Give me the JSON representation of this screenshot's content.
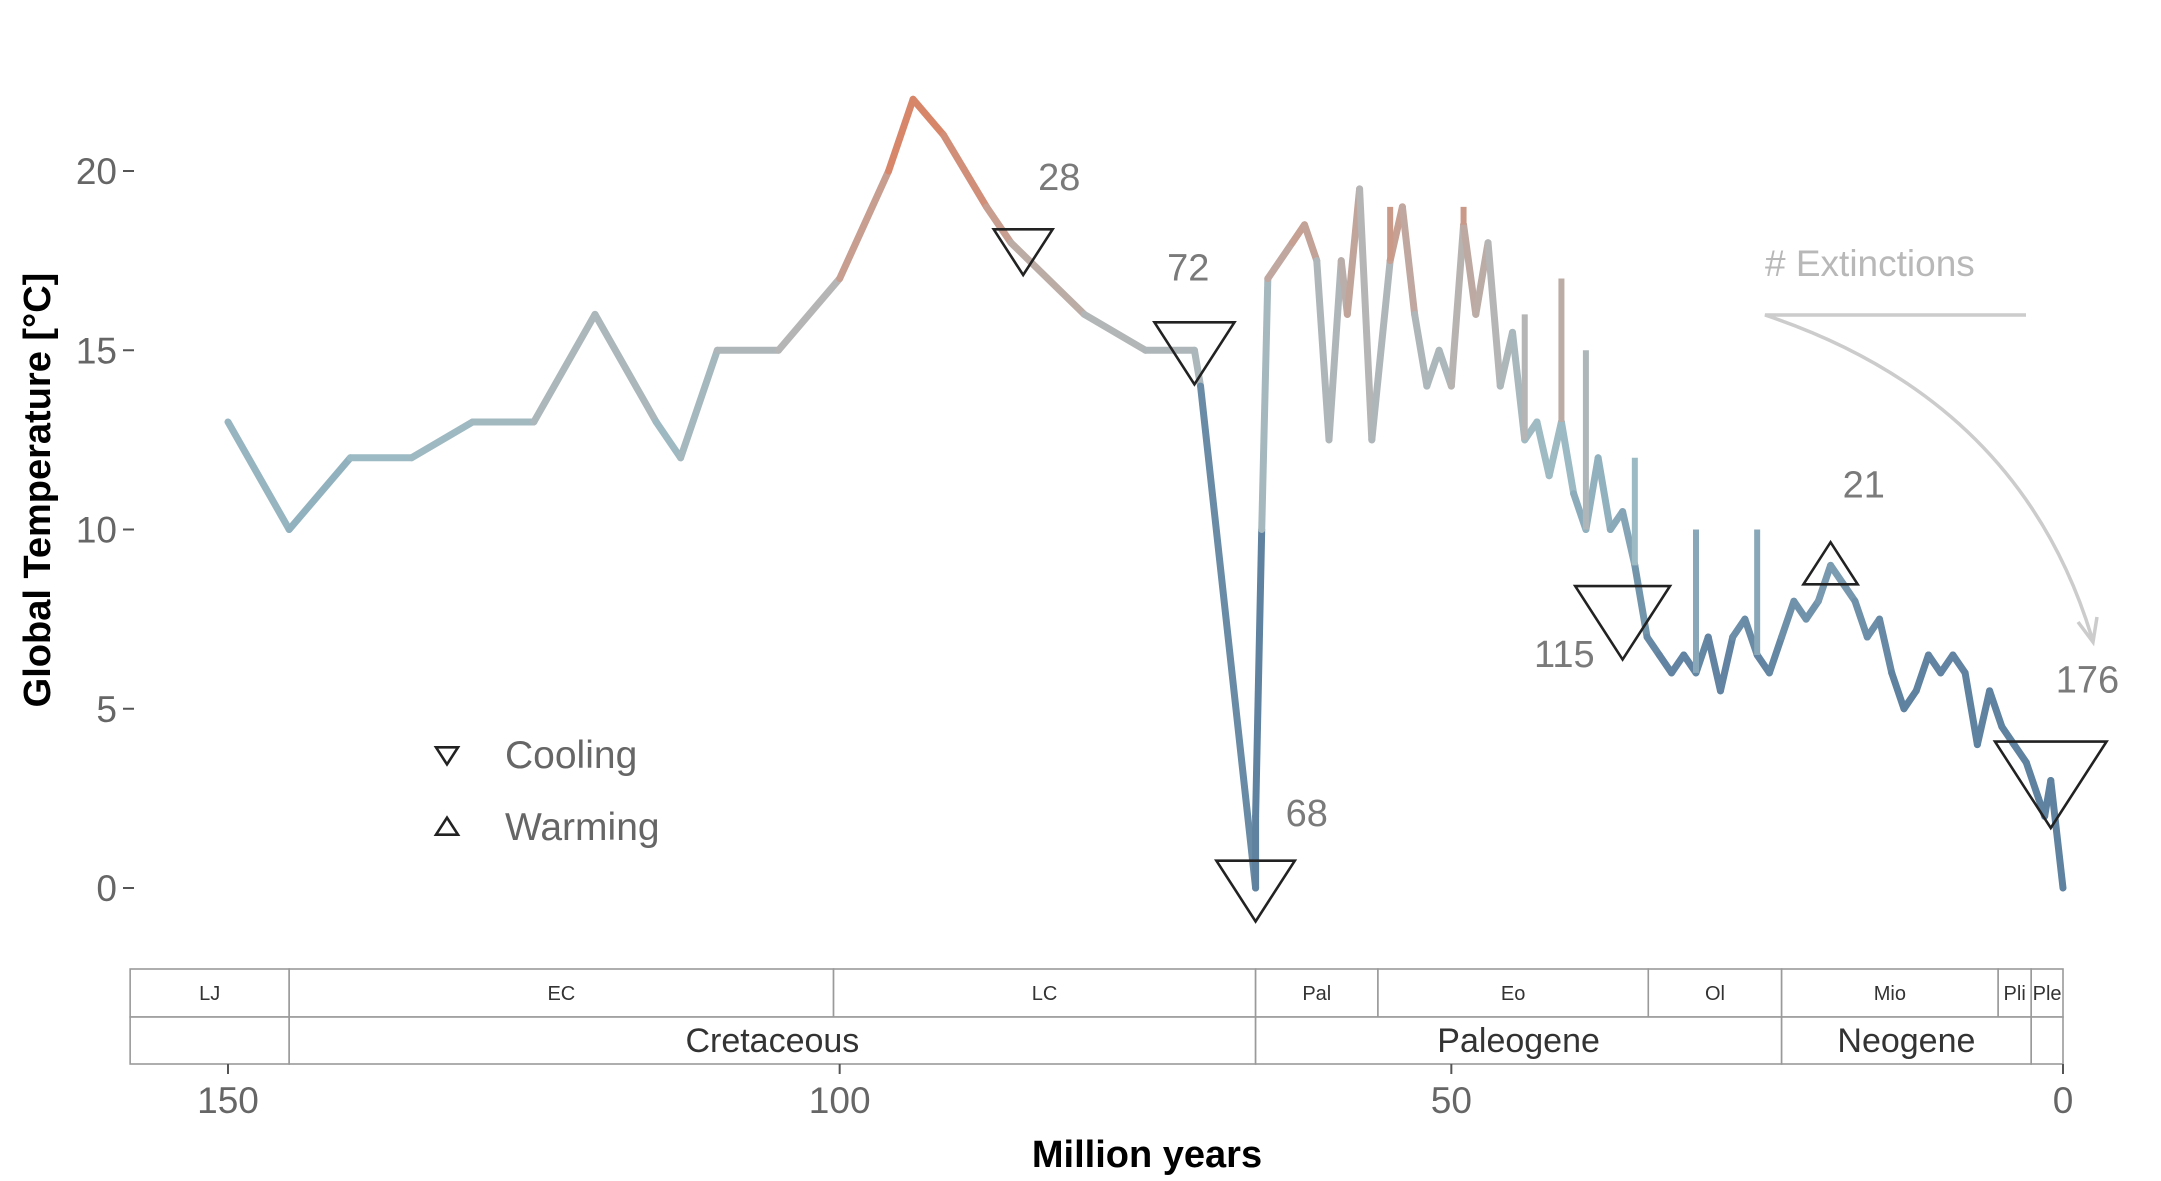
{
  "chart_data": {
    "type": "line",
    "title": "",
    "xlabel": "Million years",
    "ylabel": "Global Temperature [°C]",
    "xlim": [
      158,
      -1
    ],
    "ylim": [
      -2,
      24
    ],
    "x_ticks": [
      150,
      100,
      50,
      0
    ],
    "y_ticks": [
      0,
      5,
      10,
      15,
      20
    ],
    "series": [
      {
        "values": [
          [
            150,
            13
          ],
          [
            145,
            10
          ],
          [
            140,
            12
          ],
          [
            135,
            12
          ],
          [
            130,
            13
          ],
          [
            125,
            13
          ],
          [
            120,
            16
          ],
          [
            115,
            13
          ],
          [
            113,
            12
          ],
          [
            110,
            15
          ],
          [
            105,
            15
          ],
          [
            100,
            17
          ],
          [
            96,
            20
          ],
          [
            94,
            22
          ],
          [
            91.5,
            21
          ],
          [
            88,
            19
          ],
          [
            86,
            18
          ],
          [
            80,
            16
          ],
          [
            75,
            15
          ],
          [
            71,
            15
          ],
          [
            70.5,
            14
          ],
          [
            66,
            0
          ],
          [
            66,
            2
          ],
          [
            65.5,
            10
          ],
          [
            65,
            17
          ],
          [
            63,
            18
          ],
          [
            62,
            18.5
          ],
          [
            61,
            17.5
          ],
          [
            60,
            12.5
          ],
          [
            59,
            17.5
          ],
          [
            58.5,
            16
          ],
          [
            57.5,
            19.5
          ],
          [
            56.5,
            12.5
          ],
          [
            55,
            17.5
          ],
          [
            54,
            19
          ],
          [
            53,
            16
          ],
          [
            52,
            14
          ],
          [
            51,
            15
          ],
          [
            50,
            14
          ],
          [
            49,
            18.5
          ],
          [
            48,
            16
          ],
          [
            47,
            18
          ],
          [
            46,
            14
          ],
          [
            45,
            15.5
          ],
          [
            44,
            12.5
          ],
          [
            43,
            13
          ],
          [
            42,
            11.5
          ],
          [
            41,
            13
          ],
          [
            40,
            11
          ],
          [
            39,
            10
          ],
          [
            38,
            12
          ],
          [
            37,
            10
          ],
          [
            36,
            10.5
          ],
          [
            35,
            9
          ],
          [
            34,
            7
          ],
          [
            33,
            6.5
          ],
          [
            32,
            6
          ],
          [
            31,
            6.5
          ],
          [
            30,
            6
          ],
          [
            29,
            7
          ],
          [
            28,
            5.5
          ],
          [
            27,
            7
          ],
          [
            26,
            7.5
          ],
          [
            25,
            6.5
          ],
          [
            24,
            6
          ],
          [
            23,
            7
          ],
          [
            22,
            8
          ],
          [
            21,
            7.5
          ],
          [
            20,
            8
          ],
          [
            19,
            9
          ],
          [
            18,
            8.5
          ],
          [
            17,
            8
          ],
          [
            16,
            7
          ],
          [
            15,
            7.5
          ],
          [
            14,
            6
          ],
          [
            13,
            5
          ],
          [
            12,
            5.5
          ],
          [
            11,
            6.5
          ],
          [
            10,
            6
          ],
          [
            9,
            6.5
          ],
          [
            8,
            6
          ],
          [
            7,
            4
          ],
          [
            6,
            5.5
          ],
          [
            5,
            4.5
          ],
          [
            4,
            4
          ],
          [
            3,
            3.5
          ],
          [
            2,
            2.5
          ],
          [
            1.5,
            2
          ],
          [
            1,
            3
          ],
          [
            0,
            0
          ]
        ]
      }
    ],
    "spikes": [
      [
        44,
        16
      ],
      [
        41,
        17
      ],
      [
        39,
        15
      ],
      [
        35,
        12
      ],
      [
        30,
        10
      ],
      [
        25,
        10
      ],
      [
        55,
        19
      ],
      [
        49,
        19
      ]
    ],
    "extinction_markers": [
      {
        "x": 85,
        "y": 17.8,
        "direction": "down",
        "size": 28,
        "label": "28"
      },
      {
        "x": 71,
        "y": 15,
        "direction": "down",
        "size": 72,
        "label": "72"
      },
      {
        "x": 66,
        "y": 0,
        "direction": "down",
        "size": 68,
        "label": "68"
      },
      {
        "x": 36,
        "y": 7.5,
        "direction": "down",
        "size": 115,
        "label": "115"
      },
      {
        "x": 19,
        "y": 9,
        "direction": "up",
        "size": 21,
        "label": "21"
      },
      {
        "x": 1,
        "y": 3,
        "direction": "down",
        "size": 176,
        "label": "176"
      }
    ],
    "legend": {
      "placement": "bottom-left",
      "items": [
        {
          "symbol": "down-triangle",
          "label": "Cooling"
        },
        {
          "symbol": "up-triangle",
          "label": "Warming"
        }
      ]
    },
    "size_legend_label": "# Extinctions",
    "grid": false,
    "colors": {
      "warm": "#d8866a",
      "neutral": "#b5b5b5",
      "cool": "#5f82a0",
      "mild": "#9cbac4",
      "text": "#666666",
      "annotation": "#7a7a7a",
      "legend_arrow": "#cccccc",
      "timescale_border": "#9a9a9a"
    },
    "timescale": {
      "epochs": [
        {
          "label": "LJ",
          "start": 163,
          "end": 145
        },
        {
          "label": "EC",
          "start": 145,
          "end": 100.5
        },
        {
          "label": "LC",
          "start": 100.5,
          "end": 66
        },
        {
          "label": "Pal",
          "start": 66,
          "end": 56
        },
        {
          "label": "Eo",
          "start": 56,
          "end": 33.9
        },
        {
          "label": "Ol",
          "start": 33.9,
          "end": 23
        },
        {
          "label": "Mio",
          "start": 23,
          "end": 5.3
        },
        {
          "label": "Pli",
          "start": 5.3,
          "end": 2.6
        },
        {
          "label": "Ple",
          "start": 2.6,
          "end": 0
        }
      ],
      "periods": [
        {
          "label": "",
          "start": 163,
          "end": 145
        },
        {
          "label": "Cretaceous",
          "start": 145,
          "end": 66
        },
        {
          "label": "Paleogene",
          "start": 66,
          "end": 23
        },
        {
          "label": "Neogene",
          "start": 23,
          "end": 2.6
        },
        {
          "label": "",
          "start": 2.6,
          "end": 0
        }
      ]
    }
  }
}
